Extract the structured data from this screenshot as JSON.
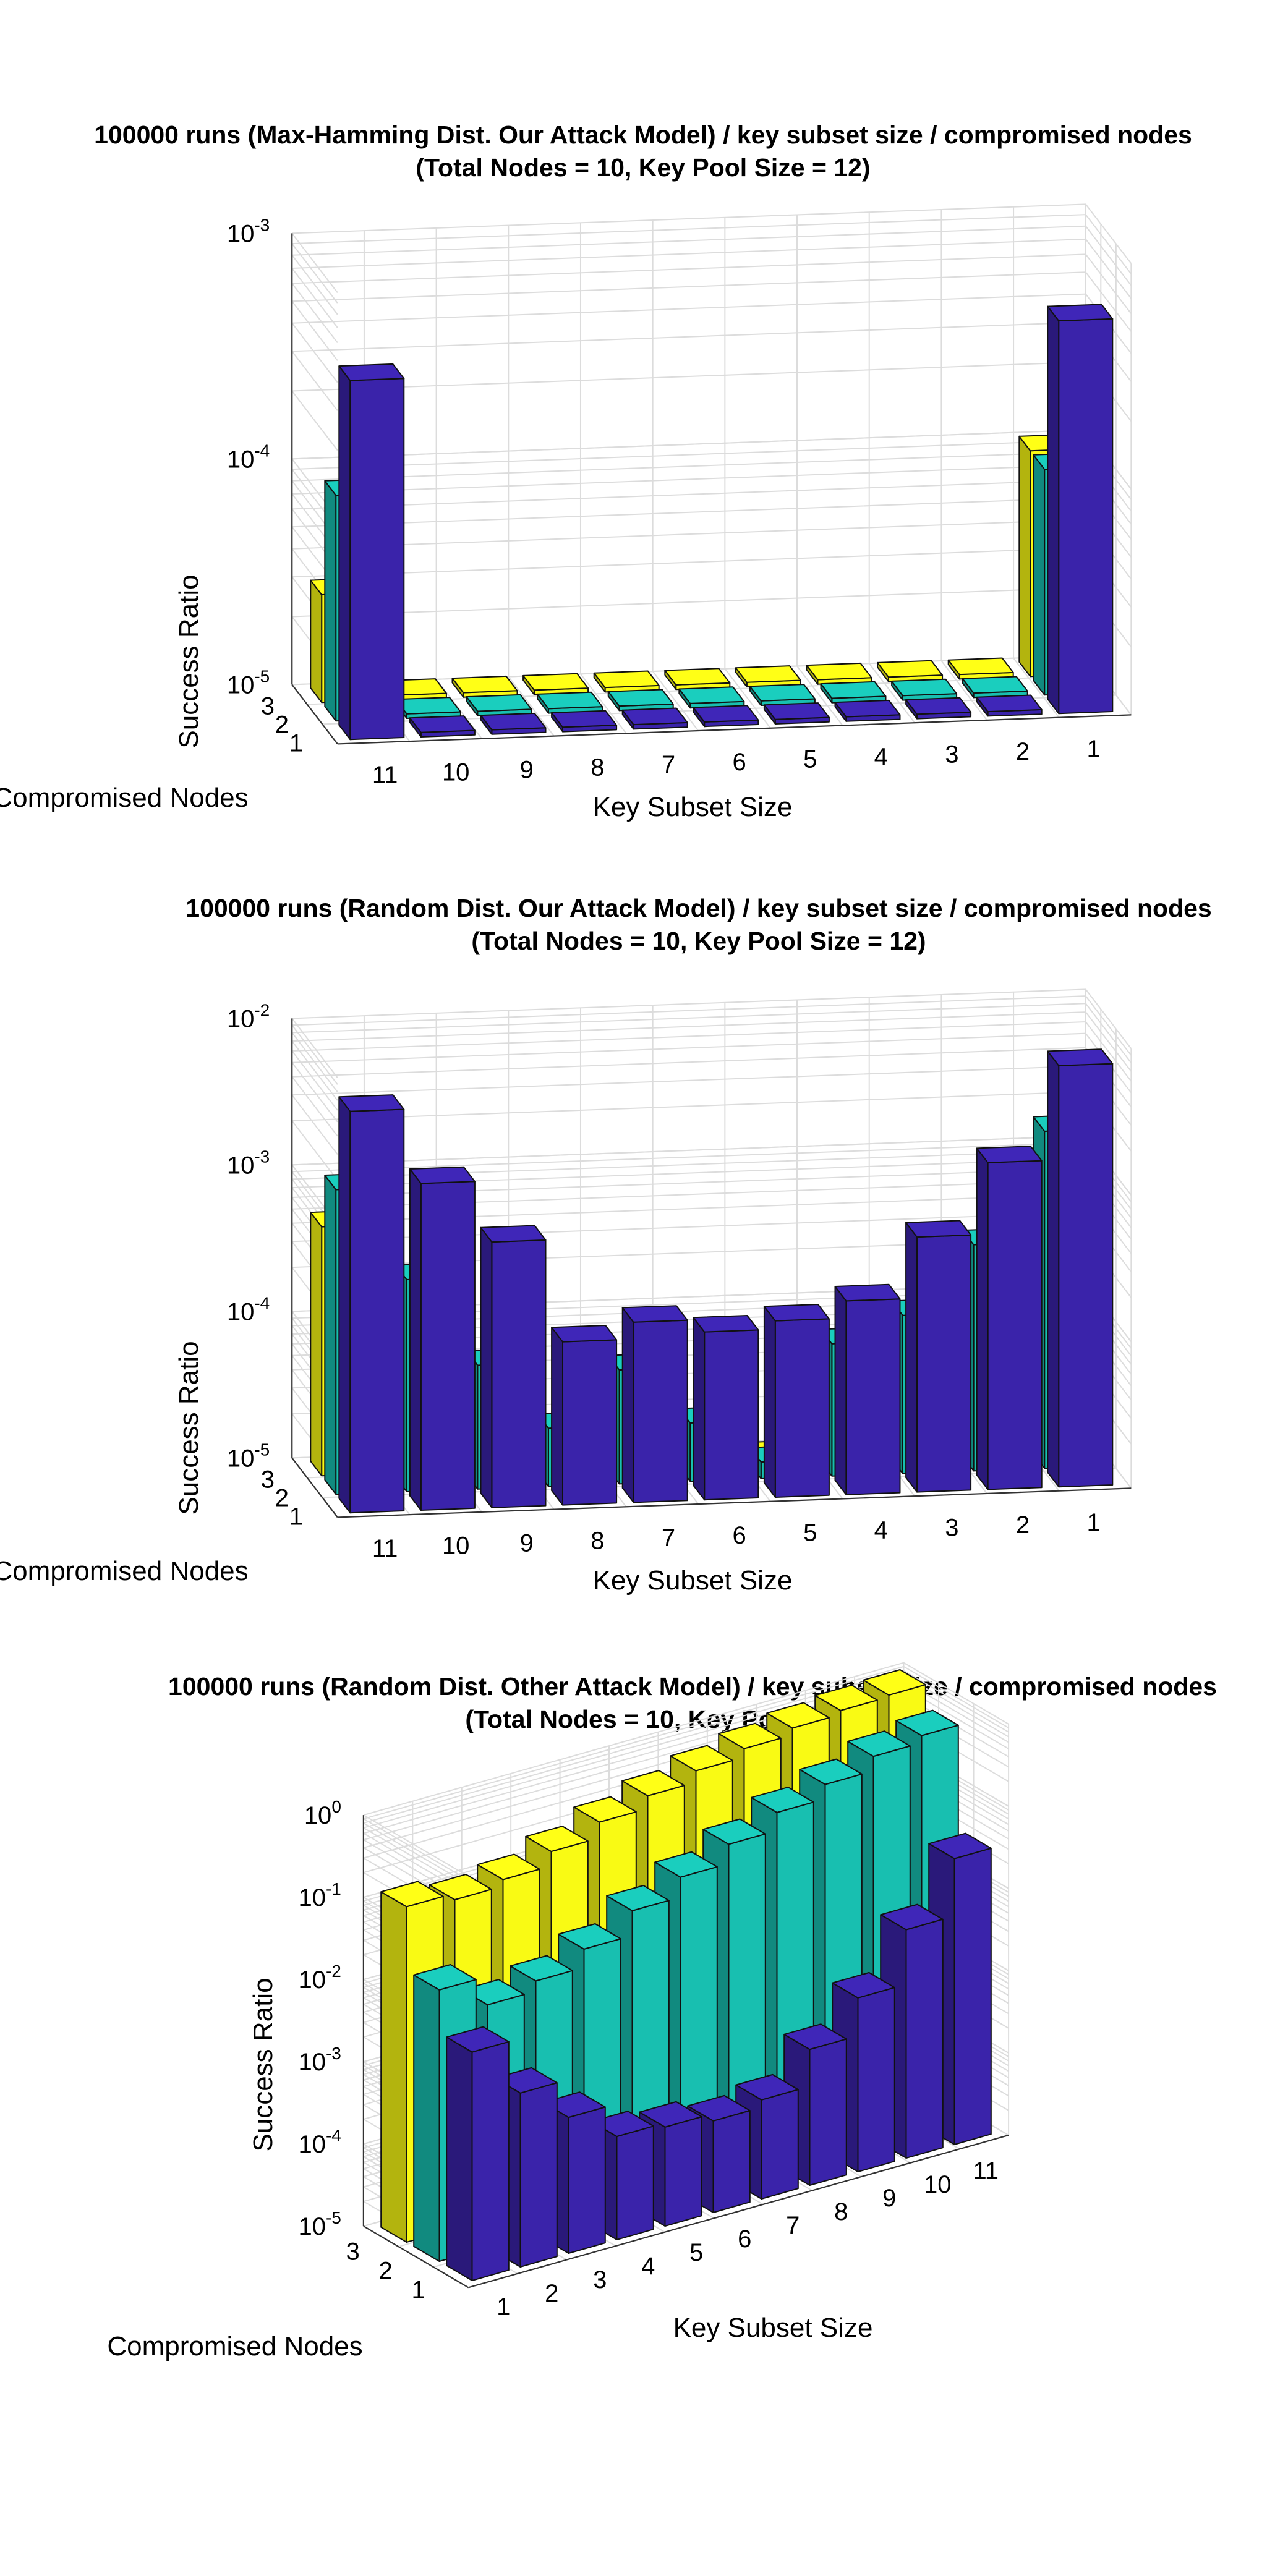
{
  "chart_data": [
    {
      "type": "bar3d",
      "title": "100000 runs (Max-Hamming Dist. Our Attack Model) / key subset size / compromised nodes",
      "subtitle": "(Total Nodes = 10, Key Pool Size = 12)",
      "xlabel": "Key Subset Size",
      "ylabel": "Compromised Nodes",
      "zlabel": "Success Ratio",
      "zscale": "log",
      "zlim": [
        1e-05,
        0.001
      ],
      "z_ticks": [
        "10-5",
        "10-4",
        "10-3"
      ],
      "categories": [
        11,
        10,
        9,
        8,
        7,
        6,
        5,
        4,
        3,
        2,
        1
      ],
      "compromised_nodes": [
        1,
        2,
        3
      ],
      "series": [
        {
          "name": "1",
          "color": "#3a23aa",
          "values": [
            0.00039,
            1e-05,
            1e-05,
            1e-05,
            1e-05,
            1e-05,
            1e-05,
            1e-05,
            1e-05,
            1e-05,
            0.00055
          ]
        },
        {
          "name": "2",
          "color": "#18bfb0",
          "values": [
            0.0001,
            1e-05,
            1e-05,
            1e-05,
            1e-05,
            1e-05,
            1e-05,
            1e-05,
            1e-05,
            1e-05,
            0.0001
          ]
        },
        {
          "name": "3",
          "color": "#f9fa14",
          "values": [
            3e-05,
            1e-05,
            1e-05,
            1e-05,
            1e-05,
            1e-05,
            1e-05,
            1e-05,
            1e-05,
            1e-05,
            0.0001
          ]
        }
      ],
      "grid": true
    },
    {
      "type": "bar3d",
      "title": "100000 runs (Random Dist. Our Attack Model) / key subset size / compromised nodes",
      "subtitle": "(Total Nodes = 10, Key Pool Size = 12)",
      "xlabel": "Key Subset Size",
      "ylabel": "Compromised Nodes",
      "zlabel": "Success Ratio",
      "zscale": "log",
      "zlim": [
        1e-05,
        0.01
      ],
      "z_ticks": [
        "10-5",
        "10-4",
        "10-3",
        "10-2"
      ],
      "categories": [
        11,
        10,
        9,
        8,
        7,
        6,
        5,
        4,
        3,
        2,
        1
      ],
      "compromised_nodes": [
        1,
        2,
        3
      ],
      "series": [
        {
          "name": "1",
          "color": "#3a23aa",
          "values": [
            0.0055,
            0.0017,
            0.00065,
            0.00013,
            0.00017,
            0.00014,
            0.00016,
            0.00021,
            0.00055,
            0.0017,
            0.0075
          ]
        },
        {
          "name": "2",
          "color": "#18bfb0",
          "values": [
            0.0012,
            0.00028,
            7e-05,
            2.5e-05,
            6e-05,
            2.5e-05,
            1.3e-05,
            8e-05,
            0.00012,
            0.00035,
            0.002
          ]
        },
        {
          "name": "3",
          "color": "#f9fa14",
          "values": [
            0.0005,
            0.00011,
            3e-05,
            1.5e-05,
            8.5e-06,
            6.5e-06,
            9.5e-06,
            1e-05,
            4e-05,
            0.00016,
            0.0008
          ]
        }
      ],
      "grid": true
    },
    {
      "type": "bar3d",
      "title": "100000 runs (Random Dist. Other Attack Model) / key subset size / compromised nodes",
      "subtitle": "(Total Nodes = 10, Key Pool Size = 12)",
      "xlabel": "Key Subset Size",
      "ylabel": "Compromised Nodes",
      "zlabel": "Success Ratio",
      "zscale": "log",
      "zlim": [
        1e-05,
        1
      ],
      "z_ticks": [
        "10-5",
        "10-4",
        "10-3",
        "10-2",
        "10-1",
        "100"
      ],
      "categories": [
        1,
        2,
        3,
        4,
        5,
        6,
        7,
        8,
        9,
        10,
        11
      ],
      "compromised_nodes": [
        1,
        2,
        3
      ],
      "series": [
        {
          "name": "1",
          "color": "#3a23aa",
          "values": [
            0.006,
            0.0013,
            0.00045,
            0.00018,
            0.00016,
            0.00013,
            0.00016,
            0.00045,
            0.0013,
            0.006,
            0.03
          ]
        },
        {
          "name": "2",
          "color": "#18bfb0",
          "values": [
            0.02,
            0.009,
            0.012,
            0.02,
            0.04,
            0.07,
            0.12,
            0.2,
            0.3,
            0.45,
            0.55
          ]
        },
        {
          "name": "3",
          "color": "#f9fa14",
          "values": [
            0.12,
            0.1,
            0.12,
            0.18,
            0.28,
            0.4,
            0.55,
            0.7,
            0.85,
            0.95,
            1.0
          ]
        }
      ],
      "grid": true
    }
  ]
}
